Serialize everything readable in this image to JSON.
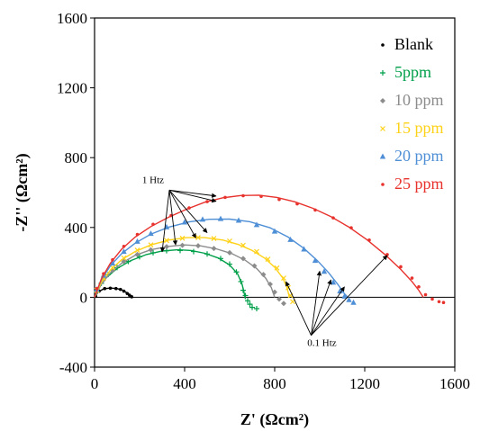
{
  "chart_data": {
    "type": "scatter",
    "title": "",
    "xlabel": "Z' (Ωcm²)",
    "ylabel": "-Z'' (Ωcm²)",
    "xlim": [
      0,
      1600
    ],
    "ylim": [
      -400,
      1600
    ],
    "x_ticks": [
      0,
      400,
      800,
      1200,
      1600
    ],
    "y_ticks": [
      -400,
      0,
      400,
      800,
      1200,
      1600
    ],
    "grid": false,
    "legend_position": "right",
    "series": [
      {
        "name": "Blank",
        "color": "#000000",
        "marker": "dot",
        "points": [
          [
            5,
            5
          ],
          [
            20,
            35
          ],
          [
            45,
            50
          ],
          [
            70,
            52
          ],
          [
            95,
            50
          ],
          [
            115,
            45
          ],
          [
            130,
            35
          ],
          [
            145,
            22
          ],
          [
            155,
            12
          ],
          [
            165,
            3
          ]
        ],
        "fit": [
          [
            0,
            0
          ],
          [
            15,
            30
          ],
          [
            40,
            48
          ],
          [
            70,
            53
          ],
          [
            100,
            50
          ],
          [
            125,
            40
          ],
          [
            145,
            25
          ],
          [
            160,
            10
          ],
          [
            168,
            0
          ]
        ]
      },
      {
        "name": "5ppm",
        "color": "#00a04a",
        "marker": "plus",
        "points": [
          [
            10,
            30
          ],
          [
            30,
            80
          ],
          [
            60,
            130
          ],
          [
            100,
            170
          ],
          [
            150,
            205
          ],
          [
            200,
            232
          ],
          [
            260,
            255
          ],
          [
            320,
            267
          ],
          [
            380,
            268
          ],
          [
            440,
            262
          ],
          [
            500,
            248
          ],
          [
            560,
            222
          ],
          [
            600,
            190
          ],
          [
            630,
            145
          ],
          [
            650,
            90
          ],
          [
            660,
            40
          ],
          [
            670,
            10
          ],
          [
            680,
            -20
          ],
          [
            690,
            -40
          ],
          [
            700,
            -58
          ],
          [
            720,
            -65
          ]
        ],
        "fit": [
          [
            0,
            0
          ],
          [
            20,
            60
          ],
          [
            50,
            110
          ],
          [
            100,
            165
          ],
          [
            160,
            210
          ],
          [
            230,
            245
          ],
          [
            300,
            265
          ],
          [
            370,
            272
          ],
          [
            430,
            268
          ],
          [
            490,
            252
          ],
          [
            550,
            225
          ],
          [
            600,
            185
          ],
          [
            635,
            135
          ],
          [
            655,
            75
          ],
          [
            665,
            20
          ],
          [
            670,
            -10
          ]
        ]
      },
      {
        "name": "10 ppm",
        "color": "#8c8c8c",
        "marker": "diamond",
        "points": [
          [
            10,
            35
          ],
          [
            40,
            100
          ],
          [
            80,
            155
          ],
          [
            130,
            205
          ],
          [
            190,
            245
          ],
          [
            250,
            272
          ],
          [
            320,
            290
          ],
          [
            390,
            298
          ],
          [
            460,
            295
          ],
          [
            530,
            280
          ],
          [
            600,
            255
          ],
          [
            660,
            222
          ],
          [
            710,
            180
          ],
          [
            750,
            130
          ],
          [
            780,
            75
          ],
          [
            800,
            30
          ],
          [
            820,
            -10
          ],
          [
            840,
            -35
          ]
        ],
        "fit": [
          [
            0,
            0
          ],
          [
            30,
            75
          ],
          [
            70,
            140
          ],
          [
            120,
            195
          ],
          [
            180,
            240
          ],
          [
            250,
            272
          ],
          [
            330,
            292
          ],
          [
            400,
            300
          ],
          [
            470,
            295
          ],
          [
            540,
            278
          ],
          [
            610,
            250
          ],
          [
            670,
            212
          ],
          [
            720,
            165
          ],
          [
            760,
            110
          ],
          [
            785,
            55
          ],
          [
            800,
            0
          ]
        ]
      },
      {
        "name": "15 ppm",
        "color": "#ffd21a",
        "marker": "x",
        "points": [
          [
            10,
            40
          ],
          [
            40,
            110
          ],
          [
            80,
            170
          ],
          [
            130,
            225
          ],
          [
            190,
            270
          ],
          [
            250,
            300
          ],
          [
            320,
            325
          ],
          [
            390,
            338
          ],
          [
            460,
            342
          ],
          [
            530,
            337
          ],
          [
            600,
            322
          ],
          [
            660,
            298
          ],
          [
            720,
            262
          ],
          [
            770,
            218
          ],
          [
            810,
            168
          ],
          [
            840,
            110
          ],
          [
            860,
            55
          ],
          [
            870,
            10
          ],
          [
            880,
            -25
          ]
        ],
        "fit": [
          [
            0,
            0
          ],
          [
            30,
            85
          ],
          [
            70,
            155
          ],
          [
            120,
            215
          ],
          [
            180,
            262
          ],
          [
            250,
            300
          ],
          [
            330,
            328
          ],
          [
            410,
            342
          ],
          [
            490,
            342
          ],
          [
            570,
            328
          ],
          [
            640,
            302
          ],
          [
            700,
            268
          ],
          [
            755,
            225
          ],
          [
            800,
            172
          ],
          [
            835,
            112
          ],
          [
            855,
            55
          ],
          [
            865,
            0
          ]
        ]
      },
      {
        "name": "20 ppm",
        "color": "#4f8fd6",
        "marker": "triangle",
        "points": [
          [
            10,
            45
          ],
          [
            40,
            125
          ],
          [
            80,
            195
          ],
          [
            130,
            262
          ],
          [
            190,
            320
          ],
          [
            250,
            365
          ],
          [
            320,
            402
          ],
          [
            400,
            430
          ],
          [
            480,
            446
          ],
          [
            560,
            450
          ],
          [
            640,
            440
          ],
          [
            720,
            415
          ],
          [
            800,
            378
          ],
          [
            870,
            330
          ],
          [
            930,
            275
          ],
          [
            980,
            210
          ],
          [
            1020,
            148
          ],
          [
            1060,
            85
          ],
          [
            1090,
            35
          ],
          [
            1110,
            5
          ],
          [
            1130,
            -15
          ],
          [
            1150,
            -30
          ]
        ],
        "fit": [
          [
            0,
            0
          ],
          [
            30,
            100
          ],
          [
            70,
            180
          ],
          [
            120,
            250
          ],
          [
            180,
            310
          ],
          [
            250,
            362
          ],
          [
            330,
            402
          ],
          [
            420,
            432
          ],
          [
            510,
            447
          ],
          [
            600,
            448
          ],
          [
            690,
            433
          ],
          [
            780,
            398
          ],
          [
            860,
            345
          ],
          [
            930,
            280
          ],
          [
            990,
            210
          ],
          [
            1040,
            140
          ],
          [
            1080,
            75
          ],
          [
            1110,
            20
          ],
          [
            1125,
            0
          ]
        ]
      },
      {
        "name": "25 ppm",
        "color": "#e8322d",
        "marker": "dot",
        "points": [
          [
            10,
            50
          ],
          [
            40,
            135
          ],
          [
            80,
            215
          ],
          [
            130,
            292
          ],
          [
            190,
            360
          ],
          [
            260,
            418
          ],
          [
            340,
            468
          ],
          [
            420,
            512
          ],
          [
            500,
            548
          ],
          [
            580,
            572
          ],
          [
            660,
            582
          ],
          [
            740,
            578
          ],
          [
            820,
            560
          ],
          [
            900,
            535
          ],
          [
            980,
            500
          ],
          [
            1060,
            455
          ],
          [
            1140,
            398
          ],
          [
            1220,
            328
          ],
          [
            1300,
            245
          ],
          [
            1360,
            175
          ],
          [
            1410,
            110
          ],
          [
            1440,
            60
          ],
          [
            1470,
            15
          ],
          [
            1500,
            -10
          ],
          [
            1530,
            -25
          ],
          [
            1550,
            -30
          ]
        ],
        "fit": [
          [
            0,
            0
          ],
          [
            30,
            105
          ],
          [
            70,
            195
          ],
          [
            120,
            275
          ],
          [
            180,
            345
          ],
          [
            250,
            405
          ],
          [
            330,
            460
          ],
          [
            410,
            505
          ],
          [
            490,
            545
          ],
          [
            570,
            570
          ],
          [
            650,
            583
          ],
          [
            730,
            585
          ],
          [
            810,
            572
          ],
          [
            890,
            547
          ],
          [
            970,
            510
          ],
          [
            1050,
            462
          ],
          [
            1130,
            402
          ],
          [
            1210,
            330
          ],
          [
            1290,
            245
          ],
          [
            1360,
            160
          ],
          [
            1410,
            90
          ],
          [
            1440,
            40
          ],
          [
            1460,
            0
          ]
        ]
      }
    ],
    "annotations": [
      {
        "text": "1 Htz",
        "at": [
          260,
          655
        ],
        "arrows_to": [
          [
            540,
            580
          ],
          [
            540,
            550
          ],
          [
            500,
            370
          ],
          [
            450,
            340
          ],
          [
            360,
            300
          ],
          [
            300,
            260
          ]
        ]
      },
      {
        "text": "0.1 Htz",
        "at": [
          1010,
          -280
        ],
        "arrows_to": [
          [
            1000,
            150
          ],
          [
            850,
            90
          ],
          [
            1050,
            100
          ],
          [
            1110,
            60
          ],
          [
            1300,
            240
          ]
        ]
      }
    ]
  }
}
